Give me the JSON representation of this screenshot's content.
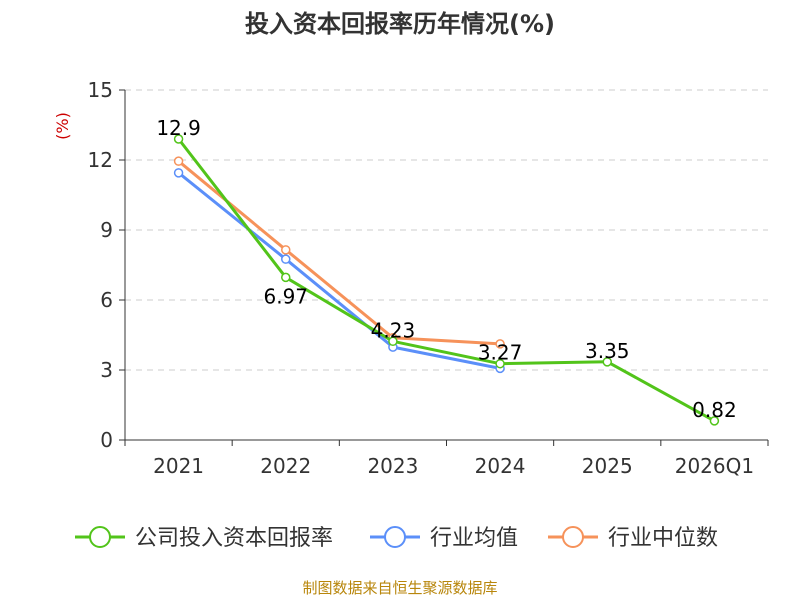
{
  "chart_data": {
    "type": "line",
    "title": "投入资本回报率历年情况(%)",
    "ylabel": "(%)",
    "xlabel": "",
    "categories": [
      "2021",
      "2022",
      "2023",
      "2024",
      "2025",
      "2026Q1"
    ],
    "ylim": [
      0,
      15
    ],
    "yticks": [
      0,
      3,
      6,
      9,
      12,
      15
    ],
    "grid": true,
    "legend_position": "bottom",
    "series": [
      {
        "name": "公司投入资本回报率",
        "color": "#52c41a",
        "values": [
          12.9,
          6.97,
          4.23,
          3.27,
          3.35,
          0.82
        ],
        "labels": [
          "12.9",
          "6.97",
          "4.23",
          "3.27",
          "3.35",
          "0.82"
        ]
      },
      {
        "name": "行业均值",
        "color": "#5b8ff9",
        "values": [
          11.45,
          7.75,
          3.98,
          3.07,
          null,
          null
        ]
      },
      {
        "name": "行业中位数",
        "color": "#f6925a",
        "values": [
          11.95,
          8.15,
          4.38,
          4.12,
          null,
          null
        ]
      }
    ]
  },
  "source": "制图数据来自恒生聚源数据库"
}
